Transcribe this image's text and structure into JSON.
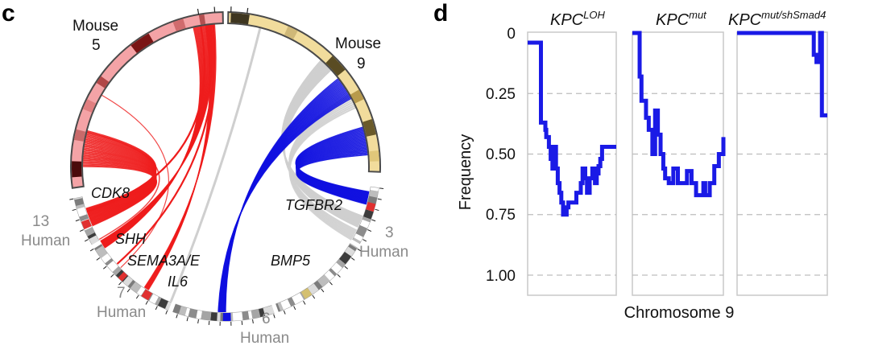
{
  "panels": {
    "c_label": "c",
    "d_label": "d"
  },
  "circos": {
    "mouse_chromosomes": [
      {
        "name": "Mouse",
        "number": "5"
      },
      {
        "name": "Mouse",
        "number": "9"
      }
    ],
    "human_chromosomes": [
      {
        "name": "Human",
        "number": "13"
      },
      {
        "name": "Human",
        "number": "7"
      },
      {
        "name": "Human",
        "number": "6"
      },
      {
        "name": "Human",
        "number": "3"
      }
    ],
    "genes": [
      "CDK8",
      "SHH",
      "SEMA3A/E",
      "IL6",
      "TGFBR2",
      "BMP5"
    ],
    "colors": {
      "mouse5": "#f4a3a6",
      "mouse9": "#f1dc9c",
      "red_links": "#ee1c1c",
      "blue_links": "#1010e0",
      "grey_links": "#cfcfcf",
      "ring_border": "#4a4a4a"
    }
  },
  "chart_data": {
    "type": "line",
    "title": "",
    "xlabel": "Chromosome 9",
    "ylabel": "Frequency",
    "ylim": [
      1.1,
      0
    ],
    "yticks": [
      0,
      0.25,
      0.5,
      0.75,
      1.0
    ],
    "ytick_labels": [
      "0",
      "0.25",
      "0.50",
      "0.75",
      "1.00"
    ],
    "grid": "dashed horizontal",
    "line_color": "#1a1ae6",
    "series": [
      {
        "name": "KPC",
        "superscript": "LOH",
        "x": [
          0.0,
          0.15,
          0.15,
          0.2,
          0.21,
          0.24,
          0.26,
          0.28,
          0.3,
          0.32,
          0.34,
          0.36,
          0.38,
          0.4,
          0.42,
          0.44,
          0.46,
          0.5,
          0.55,
          0.6,
          0.62,
          0.65,
          0.67,
          0.7,
          0.73,
          0.76,
          0.78,
          0.8,
          0.82,
          0.84,
          0.86,
          1.0
        ],
        "values": [
          0.04,
          0.04,
          0.37,
          0.4,
          0.43,
          0.47,
          0.52,
          0.56,
          0.47,
          0.56,
          0.62,
          0.66,
          0.7,
          0.75,
          0.75,
          0.72,
          0.7,
          0.7,
          0.66,
          0.62,
          0.56,
          0.6,
          0.66,
          0.6,
          0.56,
          0.62,
          0.58,
          0.55,
          0.52,
          0.47,
          0.47,
          0.47
        ]
      },
      {
        "name": "KPC",
        "superscript": "mut",
        "x": [
          0.0,
          0.08,
          0.08,
          0.1,
          0.15,
          0.18,
          0.22,
          0.25,
          0.28,
          0.31,
          0.34,
          0.36,
          0.4,
          0.42,
          0.45,
          0.5,
          0.55,
          0.6,
          0.65,
          0.7,
          0.75,
          0.78,
          0.8,
          0.85,
          0.9,
          0.95,
          1.0
        ],
        "values": [
          0.0,
          0.0,
          0.18,
          0.28,
          0.35,
          0.4,
          0.5,
          0.32,
          0.42,
          0.5,
          0.56,
          0.6,
          0.62,
          0.62,
          0.56,
          0.62,
          0.62,
          0.57,
          0.62,
          0.67,
          0.67,
          0.62,
          0.67,
          0.62,
          0.55,
          0.5,
          0.43
        ]
      },
      {
        "name": "KPC",
        "superscript": "mut/shSmad4",
        "x": [
          0.0,
          0.84,
          0.85,
          0.88,
          0.9,
          0.92,
          0.94,
          1.0
        ],
        "values": [
          0.0,
          0.0,
          0.09,
          0.12,
          0.09,
          0.0,
          0.34,
          0.34
        ]
      }
    ]
  }
}
